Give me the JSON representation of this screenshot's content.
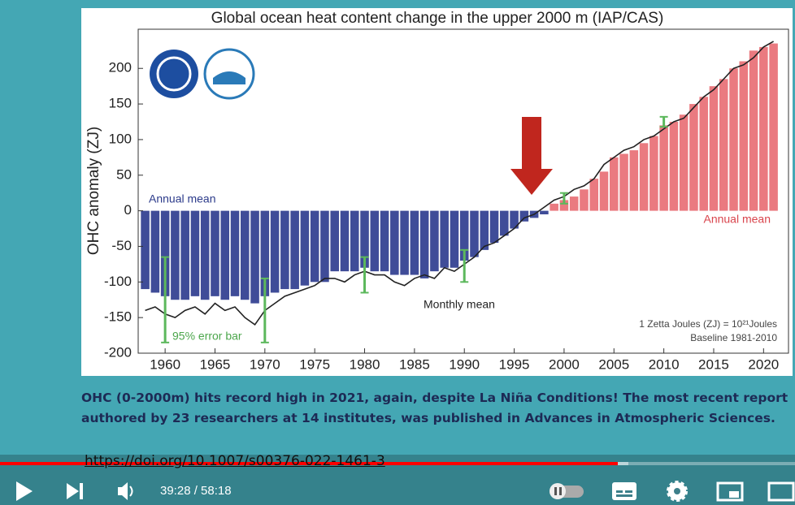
{
  "chart_data": {
    "type": "bar",
    "title": "Global ocean heat content change in the upper 2000 m (IAP/CAS)",
    "ylabel": "OHC anomaly (ZJ)",
    "x": [
      1958,
      1959,
      1960,
      1961,
      1962,
      1963,
      1964,
      1965,
      1966,
      1967,
      1968,
      1969,
      1970,
      1971,
      1972,
      1973,
      1974,
      1975,
      1976,
      1977,
      1978,
      1979,
      1980,
      1981,
      1982,
      1983,
      1984,
      1985,
      1986,
      1987,
      1988,
      1989,
      1990,
      1991,
      1992,
      1993,
      1994,
      1995,
      1996,
      1997,
      1998,
      1999,
      2000,
      2001,
      2002,
      2003,
      2004,
      2005,
      2006,
      2007,
      2008,
      2009,
      2010,
      2011,
      2012,
      2013,
      2014,
      2015,
      2016,
      2017,
      2018,
      2019,
      2020,
      2021
    ],
    "series": [
      {
        "name": "Annual mean",
        "negative_color": "#3f4c98",
        "positive_color": "#ea7a80",
        "values": [
          -110,
          -115,
          -120,
          -125,
          -125,
          -120,
          -125,
          -120,
          -125,
          -120,
          -125,
          -130,
          -120,
          -115,
          -110,
          -110,
          -105,
          -100,
          -100,
          -85,
          -85,
          -85,
          -80,
          -85,
          -85,
          -90,
          -90,
          -90,
          -95,
          -85,
          -80,
          -80,
          -70,
          -65,
          -55,
          -45,
          -35,
          -25,
          -15,
          -10,
          -5,
          10,
          15,
          20,
          30,
          45,
          55,
          75,
          80,
          85,
          95,
          105,
          120,
          125,
          135,
          150,
          160,
          175,
          185,
          200,
          210,
          225,
          230,
          235
        ]
      },
      {
        "name": "Monthly mean",
        "type": "line",
        "color": "#222222",
        "values": [
          -140,
          -135,
          -145,
          -150,
          -140,
          -135,
          -145,
          -130,
          -140,
          -135,
          -150,
          -160,
          -140,
          -130,
          -120,
          -115,
          -110,
          -105,
          -95,
          -95,
          -100,
          -90,
          -85,
          -90,
          -90,
          -100,
          -105,
          -95,
          -90,
          -95,
          -80,
          -85,
          -75,
          -65,
          -50,
          -45,
          -35,
          -25,
          -10,
          -5,
          5,
          15,
          20,
          30,
          35,
          45,
          65,
          75,
          85,
          90,
          100,
          105,
          115,
          125,
          130,
          145,
          160,
          170,
          185,
          200,
          205,
          215,
          230,
          238
        ]
      }
    ],
    "error_bars": {
      "name": "95% error bar",
      "color": "#5cb85c",
      "x": [
        1960,
        1970,
        1980,
        1990,
        2000,
        2010
      ],
      "low": [
        -185,
        -185,
        -115,
        -100,
        10,
        118
      ],
      "high": [
        -65,
        -95,
        -65,
        -55,
        25,
        132
      ]
    },
    "xlim": [
      1957.3,
      2022.5
    ],
    "ylim": [
      -200,
      255
    ],
    "xticks": [
      1960,
      1965,
      1970,
      1975,
      1980,
      1985,
      1990,
      1995,
      2000,
      2005,
      2010,
      2015,
      2020
    ],
    "yticks": [
      -200,
      -150,
      -100,
      -50,
      0,
      50,
      100,
      150,
      200
    ],
    "annotations": [
      "Annual mean",
      "Annual mean",
      "Monthly mean",
      "95% error bar",
      "1 Zetta Joules (ZJ) = 10²¹Joules",
      "Baseline 1981-2010"
    ]
  },
  "description": [
    "OHC (0-2000m) hits record high in 2021, again, despite La Niña Conditions! The most recent report",
    "authored by 23 researchers at 14 institutes, was published in Advances in Atmospheric Sciences."
  ],
  "link": "https://doi.org/10.1007/s00376-022-1461-3",
  "player": {
    "time": "39:28 / 58:18"
  }
}
